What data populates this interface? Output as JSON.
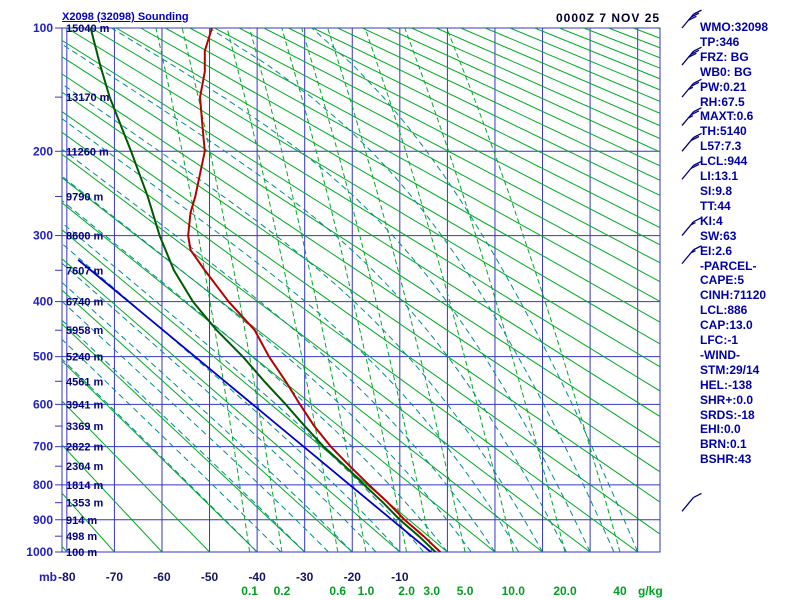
{
  "panel": {
    "lines": [
      "WMO:32098",
      "TP:346",
      "FRZ: BG",
      "WB0: BG",
      "PW:0.21",
      "RH:67.5",
      "MAXT:0.6",
      "TH:5140",
      "L57:7.3",
      "LCL:944",
      "LI:13.1",
      "SI:9.8",
      "TT:44",
      "KI:4",
      "SW:63",
      "EI:2.6",
      "-PARCEL-",
      "CAPE:5",
      "CINH:71120",
      "LCL:886",
      "CAP:13.0",
      "LFC:-1",
      "-WIND-",
      "STM:29/14",
      "HEL:-138",
      "SHR+:0.0",
      "SRDS:-18",
      "EHI:0.0",
      "BRN:0.1",
      "BSHR:43"
    ]
  },
  "chart_data": {
    "type": "line",
    "diagram": "stuve-sounding",
    "title": "X2098 (32098) Sounding",
    "timestamp": "0000Z 7 NOV 25",
    "pressure_unit_label": "mb",
    "mixing_unit_label": "g/kg",
    "ylim_mb": [
      100,
      1000
    ],
    "xlim_c": [
      -81,
      45
    ],
    "pressure_ticks": [
      100,
      200,
      300,
      400,
      500,
      600,
      700,
      800,
      900,
      1000
    ],
    "temp_ticks_c": [
      -80,
      -70,
      -60,
      -50,
      -40,
      -30,
      -20,
      -10,
      0,
      10,
      20,
      30,
      40
    ],
    "temp_tick_labels": [
      "-80",
      "-70",
      "-60",
      "-50",
      "-40",
      "-30",
      "-20",
      "-10"
    ],
    "heights": [
      [
        100,
        "15040 m"
      ],
      [
        150,
        "13170 m"
      ],
      [
        200,
        "11260 m"
      ],
      [
        250,
        "9790 m"
      ],
      [
        300,
        "8600 m"
      ],
      [
        350,
        "7607 m"
      ],
      [
        400,
        "6740 m"
      ],
      [
        450,
        "5958 m"
      ],
      [
        500,
        "5240 m"
      ],
      [
        550,
        "4561 m"
      ],
      [
        600,
        "3941 m"
      ],
      [
        650,
        "3369 m"
      ],
      [
        700,
        "2822 m"
      ],
      [
        750,
        "2304 m"
      ],
      [
        800,
        "1814 m"
      ],
      [
        850,
        "1353 m"
      ],
      [
        900,
        "914 m"
      ],
      [
        950,
        "498 m"
      ],
      [
        1000,
        "100 m"
      ]
    ],
    "mixing_ratios": [
      0.1,
      0.2,
      0.6,
      1,
      2,
      3,
      5,
      10,
      20,
      40
    ],
    "mixing_ratio_labels": [
      "0.1",
      "0.2",
      "0.6",
      "1.0",
      "2.0",
      "3.0",
      "5.0",
      "10.0",
      "20.0",
      "40"
    ],
    "dry_adiabats_c": {
      "start": -80,
      "end": 340,
      "step": 10
    },
    "moist_adiabats_c": {
      "start": -40,
      "end": 40,
      "step": 5
    },
    "series": [
      {
        "name": "temperature",
        "color": "#b40000",
        "points": [
          [
            1000,
            -1.5
          ],
          [
            950,
            -5
          ],
          [
            900,
            -9
          ],
          [
            850,
            -12.5
          ],
          [
            800,
            -16.5
          ],
          [
            750,
            -20.5
          ],
          [
            700,
            -24.5
          ],
          [
            650,
            -28
          ],
          [
            600,
            -31
          ],
          [
            550,
            -34
          ],
          [
            500,
            -37.5
          ],
          [
            450,
            -40.5
          ],
          [
            400,
            -46
          ],
          [
            350,
            -51
          ],
          [
            320,
            -54
          ],
          [
            300,
            -54.5
          ],
          [
            270,
            -54
          ],
          [
            250,
            -53
          ],
          [
            200,
            -51
          ],
          [
            175,
            -51.5
          ],
          [
            150,
            -52
          ],
          [
            130,
            -51
          ],
          [
            115,
            -51
          ],
          [
            100,
            -49.5
          ]
        ]
      },
      {
        "name": "dewpoint",
        "color": "#005a00",
        "points": [
          [
            1000,
            -2.5
          ],
          [
            950,
            -6
          ],
          [
            900,
            -10
          ],
          [
            850,
            -13.5
          ],
          [
            800,
            -17.5
          ],
          [
            750,
            -21.5
          ],
          [
            700,
            -26
          ],
          [
            650,
            -30
          ],
          [
            600,
            -34
          ],
          [
            550,
            -38.5
          ],
          [
            500,
            -43
          ],
          [
            450,
            -48.5
          ],
          [
            400,
            -53.5
          ],
          [
            350,
            -57.5
          ],
          [
            300,
            -60.5
          ],
          [
            250,
            -63
          ],
          [
            200,
            -66.5
          ],
          [
            150,
            -71
          ],
          [
            125,
            -73
          ],
          [
            100,
            -75
          ]
        ]
      },
      {
        "name": "parcel",
        "color": "#0000c8",
        "points": [
          [
            1000,
            -3.5
          ],
          [
            335,
            -77.5
          ]
        ]
      }
    ],
    "wind_barbs": [
      {
        "p": 100,
        "speed_kt": 30
      },
      {
        "p": 125,
        "speed_kt": 30
      },
      {
        "p": 150,
        "speed_kt": 25
      },
      {
        "p": 175,
        "speed_kt": 25
      },
      {
        "p": 200,
        "speed_kt": 20
      },
      {
        "p": 230,
        "speed_kt": 20
      },
      {
        "p": 300,
        "speed_kt": 15
      },
      {
        "p": 340,
        "speed_kt": 15
      },
      {
        "p": 875,
        "speed_kt": 10
      }
    ],
    "colors": {
      "grid": "#3434cc",
      "dry_adiabat": "#00aa22",
      "mixing": "#00aa22",
      "mixing_text": "#00a020",
      "moist": "#008c8c",
      "pressure_text": "#2020c8",
      "temp_text": "#141464",
      "height_text": "#000080",
      "barb": "#000080"
    }
  }
}
